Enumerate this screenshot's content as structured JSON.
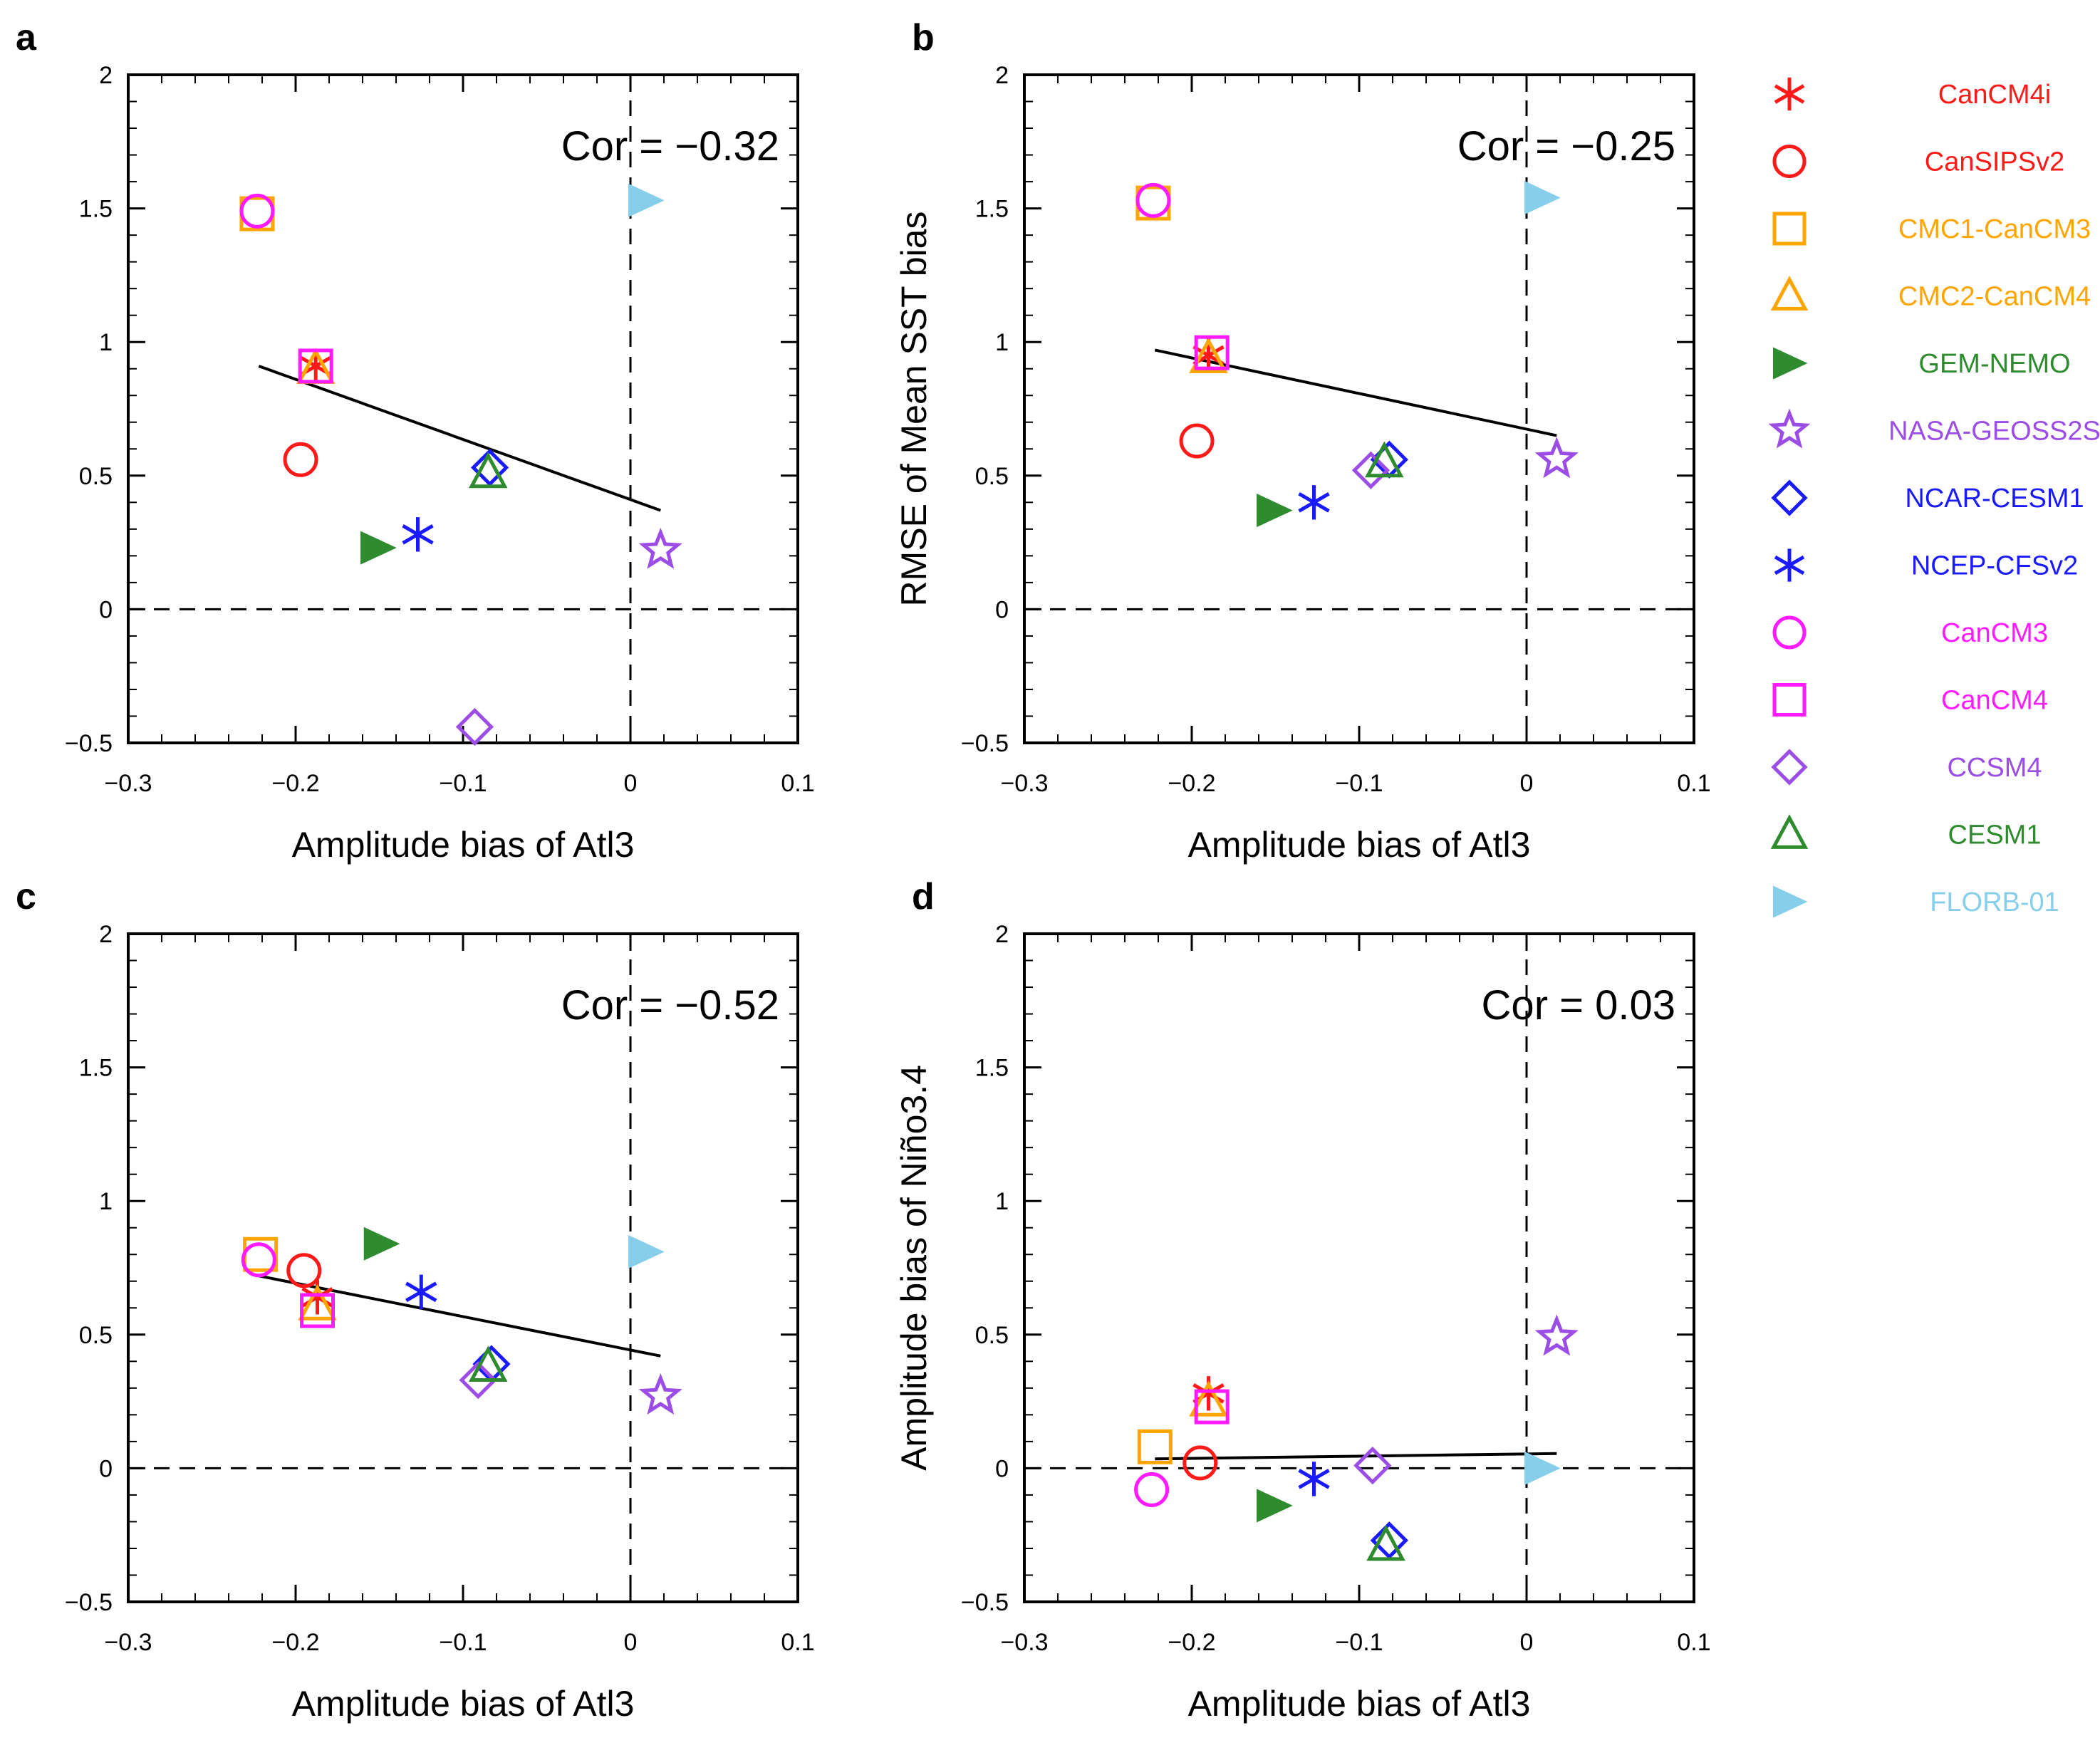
{
  "chart_data": [
    {
      "panel": "a",
      "type": "scatter",
      "xlabel": "Amplitude bias of Atl3",
      "ylabel": "",
      "cor_label": "Cor = -0.32",
      "xlim": [
        -0.3,
        0.1
      ],
      "ylim": [
        -0.5,
        2
      ],
      "xticks": [
        "-0.3",
        "-0.2",
        "-0.1",
        "0",
        "0.1"
      ],
      "yticks": [
        "-0.5",
        "0",
        "0.5",
        "1",
        "1.5",
        "2"
      ],
      "points": [
        {
          "model": "CanCM4i",
          "x": -0.188,
          "y": 0.91
        },
        {
          "model": "CanSIPSv2",
          "x": -0.197,
          "y": 0.56
        },
        {
          "model": "CMC1-CanCM3",
          "x": -0.223,
          "y": 1.48
        },
        {
          "model": "CMC2-CanCM4",
          "x": -0.188,
          "y": 0.9
        },
        {
          "model": "GEM-NEMO",
          "x": -0.151,
          "y": 0.23
        },
        {
          "model": "NASA-GEOSS2S",
          "x": 0.018,
          "y": 0.22
        },
        {
          "model": "NCAR-CESM1",
          "x": -0.084,
          "y": 0.53
        },
        {
          "model": "NCEP-CFSv2",
          "x": -0.127,
          "y": 0.28
        },
        {
          "model": "CanCM3",
          "x": -0.223,
          "y": 1.49
        },
        {
          "model": "CanCM4",
          "x": -0.188,
          "y": 0.91
        },
        {
          "model": "CCSM4",
          "x": -0.093,
          "y": -0.44
        },
        {
          "model": "CESM1",
          "x": -0.085,
          "y": 0.51
        },
        {
          "model": "FLORB-01",
          "x": 0.009,
          "y": 1.53
        }
      ],
      "fit": [
        [
          -0.222,
          0.91
        ],
        [
          0.018,
          0.37
        ]
      ]
    },
    {
      "panel": "b",
      "type": "scatter",
      "xlabel": "Amplitude bias of Atl3",
      "ylabel": "RMSE of Mean SST bias",
      "cor_label": "Cor = -0.25",
      "xlim": [
        -0.3,
        0.1
      ],
      "ylim": [
        -0.5,
        2
      ],
      "xticks": [
        "-0.3",
        "-0.2",
        "-0.1",
        "0",
        "0.1"
      ],
      "yticks": [
        "-0.5",
        "0",
        "0.5",
        "1",
        "1.5",
        "2"
      ],
      "points": [
        {
          "model": "CanCM4i",
          "x": -0.19,
          "y": 0.95
        },
        {
          "model": "CanSIPSv2",
          "x": -0.197,
          "y": 0.63
        },
        {
          "model": "CMC1-CanCM3",
          "x": -0.223,
          "y": 1.52
        },
        {
          "model": "CMC2-CanCM4",
          "x": -0.19,
          "y": 0.94
        },
        {
          "model": "GEM-NEMO",
          "x": -0.151,
          "y": 0.37
        },
        {
          "model": "NASA-GEOSS2S",
          "x": 0.018,
          "y": 0.56
        },
        {
          "model": "NCAR-CESM1",
          "x": -0.082,
          "y": 0.56
        },
        {
          "model": "NCEP-CFSv2",
          "x": -0.127,
          "y": 0.4
        },
        {
          "model": "CanCM3",
          "x": -0.223,
          "y": 1.53
        },
        {
          "model": "CanCM4",
          "x": -0.188,
          "y": 0.96
        },
        {
          "model": "CCSM4",
          "x": -0.093,
          "y": 0.52
        },
        {
          "model": "CESM1",
          "x": -0.085,
          "y": 0.55
        },
        {
          "model": "FLORB-01",
          "x": 0.009,
          "y": 1.54
        }
      ],
      "fit": [
        [
          -0.222,
          0.97
        ],
        [
          0.018,
          0.65
        ]
      ]
    },
    {
      "panel": "c",
      "type": "scatter",
      "xlabel": "Amplitude bias of Atl3",
      "ylabel": "",
      "cor_label": "Cor = -0.52",
      "xlim": [
        -0.3,
        0.1
      ],
      "ylim": [
        -0.5,
        2
      ],
      "xticks": [
        "-0.3",
        "-0.2",
        "-0.1",
        "0",
        "0.1"
      ],
      "yticks": [
        "-0.5",
        "0",
        "0.5",
        "1",
        "1.5",
        "2"
      ],
      "points": [
        {
          "model": "CanCM4i",
          "x": -0.187,
          "y": 0.64
        },
        {
          "model": "CanSIPSv2",
          "x": -0.195,
          "y": 0.74
        },
        {
          "model": "CMC1-CanCM3",
          "x": -0.221,
          "y": 0.8
        },
        {
          "model": "CMC2-CanCM4",
          "x": -0.187,
          "y": 0.61
        },
        {
          "model": "GEM-NEMO",
          "x": -0.149,
          "y": 0.84
        },
        {
          "model": "NASA-GEOSS2S",
          "x": 0.018,
          "y": 0.27
        },
        {
          "model": "NCAR-CESM1",
          "x": -0.083,
          "y": 0.39
        },
        {
          "model": "NCEP-CFSv2",
          "x": -0.125,
          "y": 0.66
        },
        {
          "model": "CanCM3",
          "x": -0.222,
          "y": 0.78
        },
        {
          "model": "CanCM4",
          "x": -0.187,
          "y": 0.59
        },
        {
          "model": "CCSM4",
          "x": -0.091,
          "y": 0.33
        },
        {
          "model": "CESM1",
          "x": -0.085,
          "y": 0.38
        },
        {
          "model": "FLORB-01",
          "x": 0.009,
          "y": 0.81
        }
      ],
      "fit": [
        [
          -0.222,
          0.72
        ],
        [
          0.018,
          0.42
        ]
      ]
    },
    {
      "panel": "d",
      "type": "scatter",
      "xlabel": "Amplitude bias of Atl3",
      "ylabel": "Amplitude bias of Niño3.4",
      "cor_label": "Cor = 0.03",
      "xlim": [
        -0.3,
        0.1
      ],
      "ylim": [
        -0.5,
        2
      ],
      "xticks": [
        "-0.3",
        "-0.2",
        "-0.1",
        "0",
        "0.1"
      ],
      "yticks": [
        "-0.5",
        "0",
        "0.5",
        "1",
        "1.5",
        "2"
      ],
      "points": [
        {
          "model": "CanCM4i",
          "x": -0.19,
          "y": 0.28
        },
        {
          "model": "CanSIPSv2",
          "x": -0.195,
          "y": 0.02
        },
        {
          "model": "CMC1-CanCM3",
          "x": -0.222,
          "y": 0.08
        },
        {
          "model": "CMC2-CanCM4",
          "x": -0.19,
          "y": 0.25
        },
        {
          "model": "GEM-NEMO",
          "x": -0.151,
          "y": -0.14
        },
        {
          "model": "NASA-GEOSS2S",
          "x": 0.018,
          "y": 0.49
        },
        {
          "model": "NCAR-CESM1",
          "x": -0.082,
          "y": -0.27
        },
        {
          "model": "NCEP-CFSv2",
          "x": -0.127,
          "y": -0.04
        },
        {
          "model": "CanCM3",
          "x": -0.224,
          "y": -0.08
        },
        {
          "model": "CanCM4",
          "x": -0.188,
          "y": 0.23
        },
        {
          "model": "CCSM4",
          "x": -0.092,
          "y": 0.01
        },
        {
          "model": "CESM1",
          "x": -0.084,
          "y": -0.29
        },
        {
          "model": "FLORB-01",
          "x": 0.009,
          "y": 0.0
        }
      ],
      "fit": [
        [
          -0.222,
          0.035
        ],
        [
          0.018,
          0.055
        ]
      ]
    }
  ],
  "legend": {
    "placement": "right",
    "items": [
      {
        "label": "CanCM4i",
        "marker": "asterisk",
        "color": "#ff1a1a"
      },
      {
        "label": "CanSIPSv2",
        "marker": "circle",
        "color": "#ff1a1a"
      },
      {
        "label": "CMC1-CanCM3",
        "marker": "square",
        "color": "#ffa500"
      },
      {
        "label": "CMC2-CanCM4",
        "marker": "triangle",
        "color": "#ffa500"
      },
      {
        "label": "GEM-NEMO",
        "marker": "right-triangle-filled",
        "color": "#2e8b2e"
      },
      {
        "label": "NASA-GEOSS2S",
        "marker": "star",
        "color": "#9b4de6"
      },
      {
        "label": "NCAR-CESM1",
        "marker": "diamond",
        "color": "#1a1aff"
      },
      {
        "label": "NCEP-CFSv2",
        "marker": "asterisk",
        "color": "#1a1aff"
      },
      {
        "label": "CanCM3",
        "marker": "circle",
        "color": "#ff1aff"
      },
      {
        "label": "CanCM4",
        "marker": "square",
        "color": "#ff1aff"
      },
      {
        "label": "CCSM4",
        "marker": "diamond",
        "color": "#9b4de6"
      },
      {
        "label": "CESM1",
        "marker": "triangle",
        "color": "#2e8b2e"
      },
      {
        "label": "FLORB-01",
        "marker": "right-triangle-filled",
        "color": "#87ceeb"
      }
    ]
  }
}
